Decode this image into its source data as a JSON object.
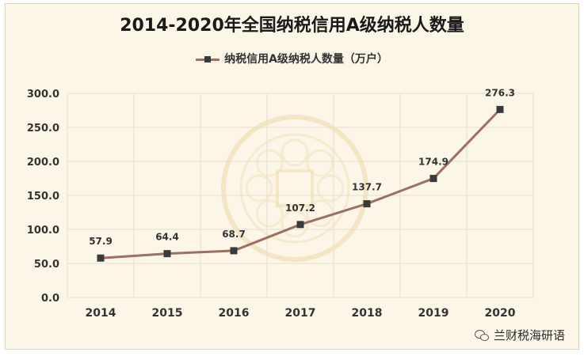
{
  "chart_data": {
    "type": "line",
    "title": "2014-2020年全国纳税信用A级纳税人数量",
    "categories": [
      "2014",
      "2015",
      "2016",
      "2017",
      "2018",
      "2019",
      "2020"
    ],
    "series": [
      {
        "name": "纳税信用A级纳税人数量（万户）",
        "values": [
          57.9,
          64.4,
          68.7,
          107.2,
          137.7,
          174.9,
          276.3
        ]
      }
    ],
    "data_labels": [
      "57.9",
      "64.4",
      "68.7",
      "107.2",
      "137.7",
      "174.9",
      "276.3"
    ],
    "yticks": [
      "0.0",
      "50.0",
      "100.0",
      "150.0",
      "200.0",
      "250.0",
      "300.0"
    ],
    "ylim": [
      0,
      300
    ],
    "grid": true,
    "legend_position": "top",
    "colors": {
      "line": "#9b6f65",
      "marker": "#3a3a3a",
      "background": "#fbf6e7",
      "grid": "#e6dfcc"
    }
  },
  "watermark": {
    "text": "兰财税海研语"
  }
}
